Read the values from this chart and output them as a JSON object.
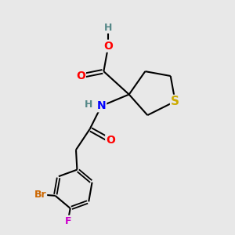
{
  "background_color": "#e8e8e8",
  "bond_color": "#000000",
  "atom_colors": {
    "O": "#ff0000",
    "N": "#0000ff",
    "S": "#ccaa00",
    "Br": "#cc6600",
    "F": "#cc00cc",
    "H": "#558888",
    "C": "#000000"
  },
  "font_size_atoms": 10,
  "fig_w": 3.0,
  "fig_h": 3.0,
  "dpi": 100
}
